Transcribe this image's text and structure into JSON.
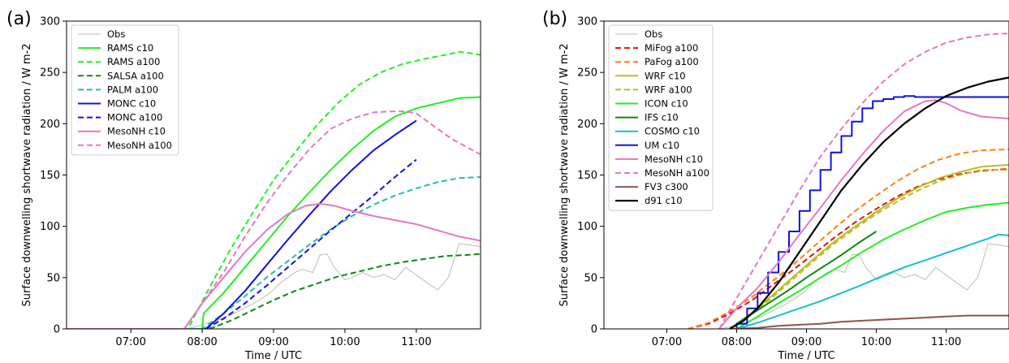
{
  "chart_data": [
    {
      "type": "line",
      "panel_label": "(a)",
      "xlabel": "Time / UTC",
      "ylabel": "Surface downwelling shortwave radiation / W m-2",
      "xlim": [
        6.1,
        11.9
      ],
      "ylim": [
        0,
        300
      ],
      "xticks": [
        7,
        8,
        9,
        10,
        11
      ],
      "xtick_labels": [
        "07:00",
        "08:00",
        "09:00",
        "10:00",
        "11:00"
      ],
      "yticks": [
        0,
        50,
        100,
        150,
        200,
        250,
        300
      ],
      "ytick_labels": [
        "0",
        "50",
        "100",
        "150",
        "200",
        "250",
        "300"
      ],
      "grid": false,
      "legend_position": "upper left",
      "series": [
        {
          "name": "Obs",
          "color": "#bbbbbb",
          "dash": "solid",
          "width": 1,
          "x": [
            6.1,
            7.75,
            7.9,
            8.05,
            8.2,
            8.35,
            8.5,
            8.65,
            8.8,
            8.95,
            9.1,
            9.2,
            9.3,
            9.4,
            9.55,
            9.65,
            9.75,
            9.85,
            10.0,
            10.1,
            10.25,
            10.4,
            10.55,
            10.7,
            10.85,
            10.95,
            11.05,
            11.15,
            11.3,
            11.45,
            11.6,
            11.75,
            11.9
          ],
          "y": [
            0,
            0,
            2,
            5,
            8,
            12,
            17,
            22,
            28,
            35,
            45,
            50,
            55,
            58,
            55,
            72,
            73,
            60,
            48,
            50,
            55,
            50,
            53,
            48,
            60,
            55,
            50,
            45,
            38,
            50,
            83,
            82,
            80
          ]
        },
        {
          "name": "RAMS c10",
          "color": "#22ee22",
          "dash": "solid",
          "width": 2,
          "x": [
            6.1,
            8.0,
            8.02,
            8.3,
            8.6,
            8.9,
            9.2,
            9.5,
            9.8,
            10.1,
            10.4,
            10.7,
            11.0,
            11.3,
            11.6,
            11.9
          ],
          "y": [
            0,
            0,
            15,
            35,
            60,
            85,
            110,
            133,
            155,
            175,
            193,
            207,
            215,
            220,
            225,
            226
          ]
        },
        {
          "name": "RAMS a100",
          "color": "#22ee22",
          "dash": "dashed",
          "width": 2,
          "x": [
            6.1,
            7.8,
            8.1,
            8.4,
            8.7,
            9.0,
            9.3,
            9.6,
            9.9,
            10.2,
            10.5,
            10.8,
            11.1,
            11.4,
            11.6,
            11.75,
            11.9
          ],
          "y": [
            0,
            0,
            40,
            78,
            112,
            145,
            172,
            198,
            220,
            238,
            250,
            258,
            263,
            267,
            270,
            269,
            267
          ]
        },
        {
          "name": "SALSA a100",
          "color": "#118811",
          "dash": "dashed",
          "width": 2,
          "x": [
            6.1,
            8.1,
            8.4,
            8.7,
            9.0,
            9.3,
            9.6,
            9.9,
            10.2,
            10.5,
            10.8,
            11.1,
            11.4,
            11.7,
            11.9
          ],
          "y": [
            0,
            0,
            8,
            18,
            28,
            37,
            44,
            51,
            56,
            61,
            65,
            68,
            71,
            72,
            73
          ]
        },
        {
          "name": "PALM a100",
          "color": "#22bbbb",
          "dash": "dashed",
          "width": 2,
          "x": [
            6.1,
            8.0,
            8.3,
            8.6,
            8.9,
            9.2,
            9.5,
            9.8,
            10.1,
            10.4,
            10.7,
            11.0,
            11.3,
            11.6,
            11.9
          ],
          "y": [
            0,
            0,
            15,
            32,
            50,
            66,
            82,
            97,
            110,
            121,
            130,
            137,
            143,
            147,
            148
          ]
        },
        {
          "name": "MONC c10",
          "color": "#1111dd",
          "dash": "solid",
          "width": 2,
          "x": [
            8.05,
            8.3,
            8.6,
            8.9,
            9.2,
            9.5,
            9.8,
            10.1,
            10.4,
            10.7,
            11.0
          ],
          "y": [
            0,
            15,
            37,
            62,
            87,
            111,
            134,
            155,
            174,
            189,
            203
          ]
        },
        {
          "name": "MONC a100",
          "color": "#1111dd",
          "dash": "dashed",
          "width": 2,
          "x": [
            8.05,
            8.3,
            8.6,
            8.9,
            9.2,
            9.5,
            9.8,
            10.1,
            10.4,
            10.7,
            11.0
          ],
          "y": [
            0,
            10,
            25,
            42,
            60,
            78,
            96,
            113,
            130,
            148,
            165
          ]
        },
        {
          "name": "MesoNH c10",
          "color": "#e377c2",
          "dash": "solid",
          "width": 2,
          "x": [
            6.1,
            7.75,
            8.0,
            8.3,
            8.6,
            8.9,
            9.2,
            9.45,
            9.65,
            9.85,
            10.1,
            10.4,
            10.7,
            11.0,
            11.3,
            11.6,
            11.9
          ],
          "y": [
            0,
            0,
            25,
            50,
            75,
            96,
            112,
            120,
            122,
            120,
            115,
            110,
            106,
            102,
            96,
            90,
            86
          ]
        },
        {
          "name": "MesoNH a100",
          "color": "#e377c2",
          "dash": "dashed",
          "width": 2,
          "x": [
            6.1,
            7.75,
            8.0,
            8.3,
            8.6,
            8.9,
            9.2,
            9.5,
            9.8,
            10.1,
            10.4,
            10.65,
            10.85,
            11.0,
            11.2,
            11.5,
            11.9
          ],
          "y": [
            0,
            0,
            25,
            55,
            90,
            122,
            150,
            175,
            195,
            205,
            211,
            212,
            212,
            210,
            200,
            185,
            170
          ]
        }
      ]
    },
    {
      "type": "line",
      "panel_label": "(b)",
      "xlabel": "Time / UTC",
      "ylabel": "Surface downwelling shortwave radiation / W m-2",
      "xlim": [
        6.1,
        11.9
      ],
      "ylim": [
        0,
        300
      ],
      "xticks": [
        7,
        8,
        9,
        10,
        11
      ],
      "xtick_labels": [
        "07:00",
        "08:00",
        "09:00",
        "10:00",
        "11:00"
      ],
      "yticks": [
        0,
        50,
        100,
        150,
        200,
        250,
        300
      ],
      "ytick_labels": [
        "0",
        "50",
        "100",
        "150",
        "200",
        "250",
        "300"
      ],
      "grid": false,
      "legend_position": "upper left",
      "series": [
        {
          "name": "Obs",
          "color": "#bbbbbb",
          "dash": "solid",
          "width": 1,
          "x": [
            6.1,
            7.75,
            7.9,
            8.05,
            8.2,
            8.35,
            8.5,
            8.65,
            8.8,
            8.95,
            9.1,
            9.2,
            9.3,
            9.4,
            9.55,
            9.65,
            9.75,
            9.85,
            10.0,
            10.1,
            10.25,
            10.4,
            10.55,
            10.7,
            10.85,
            10.95,
            11.05,
            11.15,
            11.3,
            11.45,
            11.6,
            11.75,
            11.9
          ],
          "y": [
            0,
            0,
            2,
            5,
            8,
            12,
            17,
            22,
            28,
            35,
            45,
            50,
            55,
            58,
            55,
            72,
            73,
            60,
            48,
            50,
            55,
            50,
            53,
            48,
            60,
            55,
            50,
            45,
            38,
            50,
            83,
            82,
            80
          ]
        },
        {
          "name": "MiFog a100",
          "color": "#dd1111",
          "dash": "dashed",
          "width": 2,
          "x": [
            7.3,
            7.6,
            7.9,
            8.2,
            8.5,
            8.8,
            9.1,
            9.4,
            9.7,
            10.0,
            10.3,
            10.6,
            10.9,
            11.2,
            11.5,
            11.9
          ],
          "y": [
            0,
            5,
            15,
            27,
            42,
            57,
            73,
            89,
            104,
            117,
            129,
            139,
            146,
            151,
            154,
            156
          ]
        },
        {
          "name": "PaFog a100",
          "color": "#ff7f0e",
          "dash": "dashed",
          "width": 2,
          "x": [
            7.3,
            7.6,
            7.9,
            8.2,
            8.5,
            8.8,
            9.1,
            9.4,
            9.7,
            10.0,
            10.3,
            10.6,
            10.9,
            11.2,
            11.5,
            11.9
          ],
          "y": [
            0,
            6,
            17,
            30,
            46,
            62,
            80,
            98,
            115,
            130,
            144,
            156,
            165,
            171,
            174,
            175
          ]
        },
        {
          "name": "WRF c10",
          "color": "#bcbd22",
          "dash": "solid",
          "width": 2,
          "x": [
            7.9,
            8.2,
            8.5,
            8.8,
            9.1,
            9.4,
            9.7,
            10.0,
            10.3,
            10.6,
            10.9,
            11.2,
            11.5,
            11.9
          ],
          "y": [
            0,
            15,
            32,
            50,
            68,
            85,
            100,
            114,
            127,
            138,
            147,
            153,
            158,
            160
          ]
        },
        {
          "name": "WRF a100",
          "color": "#bcbd22",
          "dash": "dashed",
          "width": 2,
          "x": [
            7.9,
            8.2,
            8.5,
            8.8,
            9.1,
            9.4,
            9.7,
            10.0,
            10.3,
            10.6,
            10.9,
            11.2,
            11.5,
            11.9
          ],
          "y": [
            0,
            14,
            30,
            48,
            66,
            83,
            98,
            112,
            124,
            135,
            144,
            150,
            155,
            155
          ]
        },
        {
          "name": "ICON c10",
          "color": "#22ee22",
          "dash": "solid",
          "width": 2,
          "x": [
            8.0,
            8.3,
            8.6,
            8.9,
            9.2,
            9.5,
            9.8,
            10.1,
            10.4,
            10.7,
            11.0,
            11.3,
            11.6,
            11.9
          ],
          "y": [
            0,
            12,
            25,
            37,
            50,
            62,
            75,
            87,
            97,
            106,
            114,
            118,
            121,
            123
          ]
        },
        {
          "name": "IFS c10",
          "color": "#118811",
          "dash": "solid",
          "width": 2,
          "x": [
            8.0,
            8.25,
            8.5,
            8.75,
            9.0,
            9.25,
            9.5,
            9.75,
            10.0
          ],
          "y": [
            5,
            16,
            27,
            38,
            50,
            61,
            72,
            84,
            95
          ]
        },
        {
          "name": "COSMO c10",
          "color": "#17becf",
          "dash": "solid",
          "width": 2,
          "x": [
            8.0,
            8.3,
            8.6,
            8.9,
            9.2,
            9.5,
            9.8,
            10.1,
            10.4,
            10.7,
            11.0,
            11.3,
            11.6,
            11.75,
            11.9
          ],
          "y": [
            0,
            6,
            13,
            20,
            27,
            35,
            43,
            52,
            60,
            67,
            74,
            81,
            88,
            92,
            91
          ]
        },
        {
          "name": "UM c10",
          "color": "#1111dd",
          "dash": "solid",
          "width": 2,
          "step": true,
          "x": [
            7.9,
            8.0,
            8.15,
            8.3,
            8.45,
            8.6,
            8.75,
            8.9,
            9.05,
            9.2,
            9.35,
            9.5,
            9.65,
            9.8,
            9.95,
            10.1,
            10.25,
            10.4,
            10.55,
            10.7,
            10.85,
            11.0,
            11.15,
            11.3,
            11.45,
            11.6,
            11.9
          ],
          "y": [
            0,
            5,
            20,
            35,
            55,
            75,
            95,
            115,
            135,
            155,
            172,
            188,
            202,
            215,
            222,
            224,
            226,
            227,
            226,
            226,
            226,
            226,
            226,
            226,
            226,
            226,
            226
          ]
        },
        {
          "name": "MesoNH c10",
          "color": "#e377c2",
          "dash": "solid",
          "width": 2,
          "x": [
            7.75,
            8.0,
            8.3,
            8.6,
            8.9,
            9.2,
            9.5,
            9.8,
            10.1,
            10.4,
            10.7,
            10.85,
            11.0,
            11.2,
            11.5,
            11.9
          ],
          "y": [
            0,
            20,
            40,
            65,
            92,
            118,
            145,
            170,
            193,
            212,
            222,
            223,
            220,
            213,
            207,
            205
          ]
        },
        {
          "name": "MesoNH a100",
          "color": "#e377c2",
          "dash": "dashed",
          "width": 2,
          "x": [
            7.75,
            8.0,
            8.3,
            8.6,
            8.9,
            9.2,
            9.5,
            9.8,
            10.1,
            10.4,
            10.7,
            11.0,
            11.3,
            11.6,
            11.9
          ],
          "y": [
            0,
            30,
            65,
            100,
            135,
            168,
            195,
            220,
            241,
            258,
            270,
            279,
            284,
            287,
            288
          ]
        },
        {
          "name": "FV3 c300",
          "color": "#8c564b",
          "dash": "solid",
          "width": 2,
          "x": [
            7.9,
            8.3,
            8.6,
            8.9,
            9.2,
            9.5,
            9.8,
            10.1,
            10.4,
            10.7,
            11.0,
            11.3,
            11.6,
            11.9
          ],
          "y": [
            0,
            1,
            3,
            4,
            5,
            7,
            8,
            9,
            10,
            11,
            12,
            13,
            13,
            13
          ]
        },
        {
          "name": "d91 c10",
          "color": "#000000",
          "dash": "solid",
          "width": 2.2,
          "x": [
            7.9,
            8.1,
            8.3,
            8.6,
            8.9,
            9.2,
            9.5,
            9.8,
            10.1,
            10.4,
            10.7,
            11.0,
            11.3,
            11.6,
            11.9
          ],
          "y": [
            0,
            8,
            20,
            45,
            75,
            105,
            135,
            160,
            182,
            200,
            215,
            227,
            235,
            241,
            245
          ]
        }
      ]
    }
  ]
}
